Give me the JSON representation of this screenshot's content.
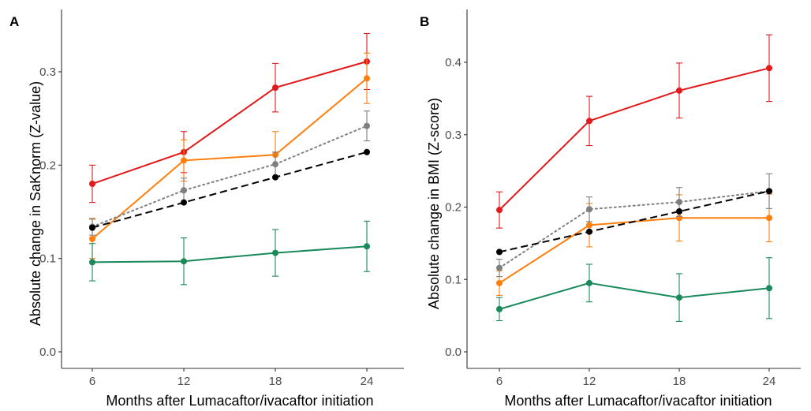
{
  "chart_data": [
    {
      "type": "line",
      "panel_label": "A",
      "xlabel": "Months after Lumacaftor/ivacaftor initiation",
      "ylabel": "Absolute change in SaKnorm (Z-value)",
      "x": [
        6,
        12,
        18,
        24
      ],
      "xlim": [
        6,
        24
      ],
      "ylim": [
        0,
        0.3
      ],
      "yticks": [
        "0.0",
        "0.1",
        "0.2",
        "0.3"
      ],
      "xticks": [
        "6",
        "12",
        "18",
        "24"
      ],
      "grid": false,
      "legend": "none",
      "series": [
        {
          "color": "#e31a1c",
          "style": "solid",
          "values": [
            0.18,
            0.214,
            0.283,
            0.311
          ],
          "err_low": [
            0.16,
            0.192,
            0.257,
            0.281
          ],
          "err_high": [
            0.2,
            0.236,
            0.309,
            0.341
          ]
        },
        {
          "color": "#ff7f0e",
          "style": "solid",
          "values": [
            0.121,
            0.205,
            0.211,
            0.293
          ],
          "err_low": [
            0.1,
            0.183,
            0.186,
            0.266
          ],
          "err_high": [
            0.142,
            0.227,
            0.236,
            0.32
          ]
        },
        {
          "color": "#7f7f7f",
          "style": "dotted",
          "values": [
            0.134,
            0.173,
            0.201,
            0.242
          ],
          "err_low": [
            0.125,
            0.16,
            0.188,
            0.226
          ],
          "err_high": [
            0.143,
            0.186,
            0.214,
            0.258
          ]
        },
        {
          "color": "#000000",
          "style": "dashed",
          "values": [
            0.133,
            0.16,
            0.187,
            0.214
          ],
          "err_low": null,
          "err_high": null
        },
        {
          "color": "#1b8a5a",
          "style": "solid",
          "values": [
            0.096,
            0.097,
            0.106,
            0.113
          ],
          "err_low": [
            0.076,
            0.072,
            0.081,
            0.086
          ],
          "err_high": [
            0.116,
            0.122,
            0.131,
            0.14
          ]
        }
      ]
    },
    {
      "type": "line",
      "panel_label": "B",
      "xlabel": "Months after Lumacaftor/ivacaftor initiation",
      "ylabel": "Absolute change in BMI (Z-score)",
      "x": [
        6,
        12,
        18,
        24
      ],
      "xlim": [
        6,
        24
      ],
      "ylim": [
        0,
        0.4
      ],
      "yticks": [
        "0.0",
        "0.1",
        "0.2",
        "0.3",
        "0.4"
      ],
      "xticks": [
        "6",
        "12",
        "18",
        "24"
      ],
      "grid": false,
      "legend": "none",
      "series": [
        {
          "color": "#e31a1c",
          "style": "solid",
          "values": [
            0.196,
            0.319,
            0.361,
            0.392
          ],
          "err_low": [
            0.171,
            0.285,
            0.323,
            0.346
          ],
          "err_high": [
            0.221,
            0.353,
            0.399,
            0.438
          ]
        },
        {
          "color": "#ff7f0e",
          "style": "solid",
          "values": [
            0.095,
            0.175,
            0.185,
            0.185
          ],
          "err_low": [
            0.078,
            0.145,
            0.153,
            0.152
          ],
          "err_high": [
            0.112,
            0.205,
            0.217,
            0.218
          ]
        },
        {
          "color": "#7f7f7f",
          "style": "dotted",
          "values": [
            0.116,
            0.197,
            0.207,
            0.222
          ],
          "err_low": [
            0.104,
            0.18,
            0.187,
            0.198
          ],
          "err_high": [
            0.128,
            0.214,
            0.227,
            0.246
          ]
        },
        {
          "color": "#000000",
          "style": "dashed",
          "values": [
            0.138,
            0.166,
            0.194,
            0.222
          ],
          "err_low": null,
          "err_high": null
        },
        {
          "color": "#1b8a5a",
          "style": "solid",
          "values": [
            0.059,
            0.095,
            0.075,
            0.088
          ],
          "err_low": [
            0.043,
            0.069,
            0.042,
            0.046
          ],
          "err_high": [
            0.075,
            0.121,
            0.108,
            0.13
          ]
        }
      ]
    }
  ]
}
